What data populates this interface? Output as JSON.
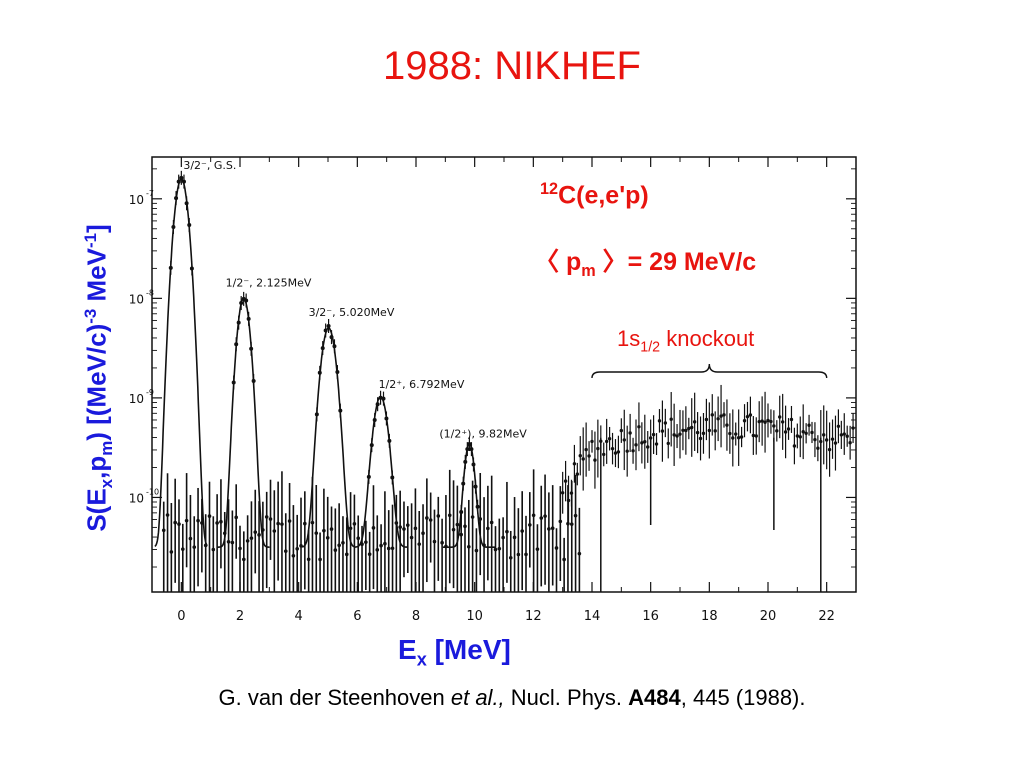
{
  "slide": {
    "title": "1988: NIKHEF"
  },
  "reaction": {
    "mass_number": "12",
    "text": "C(e,e'p)"
  },
  "momentum": {
    "open": "〈 p",
    "sub": "m",
    "close": " 〉= 29 MeV/c"
  },
  "knockout": {
    "pre": "1s",
    "sub": "1/2",
    "post": " knockout"
  },
  "ylabel": {
    "a": "S(E",
    "b": "x",
    "c": ",p",
    "d": "m",
    "e": ") [(MeV/c)",
    "f": "-3",
    "g": " MeV",
    "h": "-1",
    "i": "]"
  },
  "xlabel": {
    "a": "E",
    "b": "x",
    "c": " [MeV]"
  },
  "citation": {
    "authors": "G. van der Steenhoven ",
    "etal": "et al.,",
    "journal": " Nucl. Phys. ",
    "volume": "A484",
    "rest": ", 445 (1988)."
  },
  "colors": {
    "title": "#e8140f",
    "label": "#1a1adc",
    "ink": "#111111"
  },
  "chart_data": {
    "type": "scatter",
    "title": "",
    "xlabel": "Ex [MeV]",
    "ylabel": "S(Ex,pm) [(MeV/c)-3 MeV-1]",
    "xlim": [
      -1,
      23
    ],
    "ylog": true,
    "ylim_log10": [
      -10.95,
      -6.58
    ],
    "x_ticks": [
      0,
      2,
      4,
      6,
      8,
      10,
      12,
      14,
      16,
      18,
      20,
      22
    ],
    "y_ticks": [
      {
        "label": "10",
        "exp": "-7",
        "log10": -7
      },
      {
        "label": "10",
        "exp": "-8",
        "log10": -8
      },
      {
        "label": "10",
        "exp": "-9",
        "log10": -9
      },
      {
        "label": "10",
        "exp": "-10",
        "log10": -10
      }
    ],
    "peaks": [
      {
        "label": "3/2⁻, G.S.",
        "x": 0.0,
        "log10y": -6.8
      },
      {
        "label": "1/2⁻, 2.125MeV",
        "x": 2.125,
        "log10y": -8.0
      },
      {
        "label": "3/2⁻, 5.020MeV",
        "x": 5.02,
        "log10y": -8.3
      },
      {
        "label": "1/2⁺, 6.792MeV",
        "x": 6.792,
        "log10y": -9.0
      },
      {
        "label": "(1/2⁺), 9.82MeV",
        "x": 9.82,
        "log10y": -9.5
      }
    ],
    "continuum": {
      "x": [
        14,
        16,
        18,
        20,
        22
      ],
      "log10y": [
        -9.5,
        -9.35,
        -9.3,
        -9.3,
        -9.4
      ]
    },
    "annotation_range": {
      "label": "1s1/2 knockout",
      "x": [
        14,
        22
      ]
    },
    "background_log10": -10.4
  }
}
